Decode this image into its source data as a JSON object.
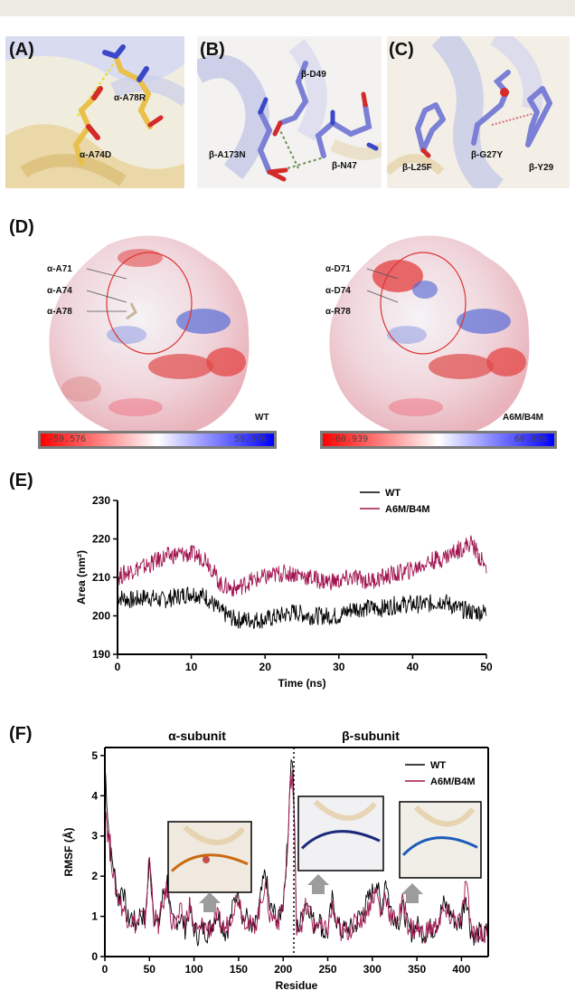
{
  "panels": {
    "A": {
      "label": "(A)",
      "residues": [
        "α-A74D",
        "α-A78R"
      ]
    },
    "B": {
      "label": "(B)",
      "residues": [
        "β-D49",
        "β-A173N",
        "β-N47"
      ]
    },
    "C": {
      "label": "(C)",
      "residues": [
        "β-L25F",
        "β-G27Y",
        "β-Y29"
      ]
    },
    "D": {
      "label": "(D)",
      "left": {
        "residues": [
          "α-A71",
          "α-A74",
          "α-A78"
        ],
        "tag": "WT",
        "scale_min": "-59.576",
        "scale_max": "59.576"
      },
      "right": {
        "residues": [
          "α-D71",
          "α-D74",
          "α-R78"
        ],
        "tag": "A6M/B4M",
        "scale_min": "-60.939",
        "scale_max": "60.939"
      }
    },
    "E": {
      "label": "(E)"
    },
    "F": {
      "label": "(F)",
      "alpha_title": "α-subunit",
      "beta_title": "β-subunit"
    }
  },
  "colors": {
    "wt": "#000000",
    "mut": "#a0134f",
    "stick_yellow": "#e8c04a",
    "stick_blue": "#7b80d6",
    "ribbon_blue": "#b9bde6",
    "ribbon_tan": "#e3c99a"
  },
  "chart_data": [
    {
      "type": "line",
      "panel": "E",
      "xlabel": "Time (ns)",
      "ylabel": "Area (nm²)",
      "xlim": [
        0,
        50
      ],
      "ylim": [
        190,
        230
      ],
      "xticks": [
        0,
        10,
        20,
        30,
        40,
        50
      ],
      "yticks": [
        190,
        200,
        210,
        220,
        230
      ],
      "legend": "top-right",
      "series": [
        {
          "name": "WT",
          "color": "#000000",
          "x": [
            0,
            2,
            4,
            6,
            8,
            10,
            12,
            14,
            16,
            18,
            20,
            22,
            24,
            26,
            28,
            30,
            32,
            34,
            36,
            38,
            40,
            42,
            44,
            46,
            48,
            50
          ],
          "values": [
            205,
            204,
            205,
            204,
            205,
            206,
            205,
            201,
            199,
            199,
            199,
            200,
            201,
            200,
            200,
            200,
            202,
            202,
            202,
            203,
            203,
            203,
            204,
            202,
            201,
            201
          ]
        },
        {
          "name": "A6M/B4M",
          "color": "#a0134f",
          "x": [
            0,
            2,
            4,
            6,
            8,
            10,
            12,
            14,
            16,
            18,
            20,
            22,
            24,
            26,
            28,
            30,
            32,
            34,
            36,
            38,
            40,
            42,
            44,
            46,
            48,
            50
          ],
          "values": [
            210,
            212,
            213,
            215,
            216,
            216,
            215,
            208,
            207,
            209,
            210,
            211,
            211,
            210,
            209,
            209,
            210,
            209,
            210,
            211,
            212,
            214,
            215,
            217,
            219,
            212
          ]
        }
      ]
    },
    {
      "type": "line",
      "panel": "F",
      "xlabel": "Residue",
      "ylabel": "RMSF (Å)",
      "xlim": [
        0,
        430
      ],
      "ylim": [
        0,
        5.2
      ],
      "xticks": [
        0,
        50,
        100,
        150,
        200,
        250,
        300,
        350,
        400
      ],
      "yticks": [
        0,
        1,
        2,
        3,
        4,
        5
      ],
      "divider_x": 212,
      "legend": "top-right",
      "series": [
        {
          "name": "WT",
          "color": "#000000",
          "x": [
            0,
            3,
            6,
            10,
            15,
            20,
            25,
            30,
            35,
            40,
            45,
            50,
            55,
            60,
            65,
            70,
            75,
            80,
            85,
            90,
            95,
            100,
            105,
            110,
            115,
            120,
            125,
            130,
            135,
            140,
            145,
            150,
            155,
            160,
            165,
            170,
            175,
            180,
            185,
            190,
            195,
            200,
            205,
            208,
            210,
            212,
            215,
            220,
            225,
            230,
            235,
            240,
            245,
            250,
            255,
            260,
            265,
            270,
            275,
            280,
            285,
            290,
            295,
            300,
            305,
            310,
            315,
            320,
            325,
            330,
            335,
            340,
            345,
            350,
            355,
            360,
            365,
            370,
            375,
            380,
            385,
            390,
            395,
            400,
            405,
            410,
            415,
            420,
            425,
            430
          ],
          "values": [
            4.8,
            3.6,
            2.6,
            2.2,
            1.4,
            1.8,
            0.9,
            1.0,
            0.8,
            1.1,
            0.9,
            2.3,
            1.1,
            0.7,
            1.5,
            1.9,
            0.8,
            0.9,
            1.0,
            0.7,
            1.2,
            0.7,
            0.5,
            0.7,
            0.6,
            0.8,
            1.1,
            0.9,
            0.6,
            0.8,
            1.4,
            1.7,
            0.9,
            1.0,
            0.6,
            0.8,
            1.5,
            2.1,
            1.2,
            1.1,
            0.9,
            1.4,
            2.8,
            4.6,
            5.0,
            4.0,
            0.7,
            0.9,
            1.4,
            1.2,
            0.8,
            1.0,
            0.6,
            0.6,
            1.4,
            0.9,
            0.6,
            0.7,
            0.7,
            0.7,
            1.0,
            1.1,
            1.4,
            1.6,
            1.9,
            1.1,
            2.0,
            1.2,
            1.0,
            0.9,
            1.2,
            0.7,
            0.6,
            0.8,
            0.6,
            0.6,
            0.7,
            0.7,
            1.0,
            1.3,
            1.2,
            1.0,
            0.8,
            0.9,
            1.6,
            0.7,
            0.5,
            0.6,
            0.5,
            0.7
          ]
        },
        {
          "name": "A6M/B4M",
          "color": "#a0134f",
          "x": [
            0,
            3,
            6,
            10,
            15,
            20,
            25,
            30,
            35,
            40,
            45,
            50,
            55,
            60,
            65,
            70,
            75,
            80,
            85,
            90,
            95,
            100,
            105,
            110,
            115,
            120,
            125,
            130,
            135,
            140,
            145,
            150,
            155,
            160,
            165,
            170,
            175,
            180,
            185,
            190,
            195,
            200,
            205,
            208,
            210,
            212,
            215,
            220,
            225,
            230,
            235,
            240,
            245,
            250,
            255,
            260,
            265,
            270,
            275,
            280,
            285,
            290,
            295,
            300,
            305,
            310,
            315,
            320,
            325,
            330,
            335,
            340,
            345,
            350,
            355,
            360,
            365,
            370,
            375,
            380,
            385,
            390,
            395,
            400,
            405,
            410,
            415,
            420,
            425,
            430
          ],
          "values": [
            3.9,
            3.1,
            2.8,
            1.9,
            1.5,
            1.2,
            1.0,
            0.9,
            0.8,
            1.0,
            0.9,
            2.5,
            1.0,
            0.8,
            1.3,
            1.7,
            0.9,
            0.8,
            1.1,
            0.8,
            1.3,
            0.7,
            0.6,
            0.8,
            0.7,
            0.7,
            1.0,
            0.8,
            0.7,
            0.9,
            1.3,
            1.5,
            1.0,
            0.9,
            0.7,
            0.9,
            1.3,
            1.9,
            1.0,
            1.0,
            0.9,
            1.3,
            2.6,
            4.3,
            4.6,
            3.6,
            0.8,
            0.8,
            1.2,
            1.1,
            0.7,
            0.9,
            0.6,
            0.7,
            1.2,
            0.8,
            0.6,
            0.6,
            0.7,
            0.8,
            0.9,
            1.0,
            1.2,
            1.5,
            1.6,
            1.0,
            1.6,
            1.0,
            0.9,
            1.0,
            1.4,
            0.8,
            0.7,
            0.7,
            0.6,
            0.6,
            0.7,
            0.7,
            0.9,
            1.1,
            1.0,
            1.0,
            0.9,
            0.9,
            1.9,
            0.8,
            0.6,
            0.6,
            0.5,
            0.6
          ]
        }
      ]
    }
  ]
}
